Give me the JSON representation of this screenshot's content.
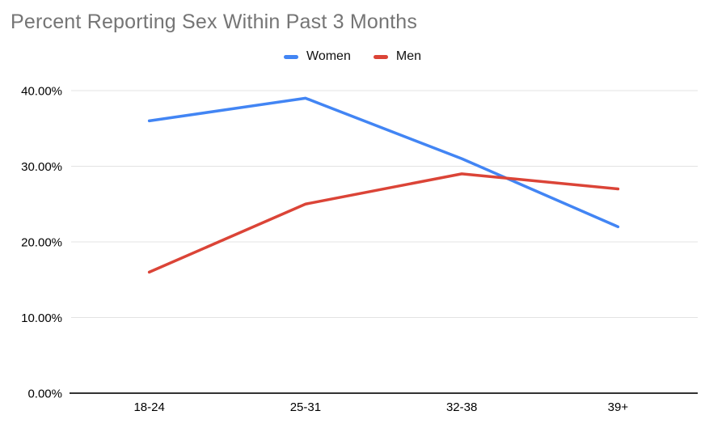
{
  "chart_data": {
    "type": "line",
    "title": "Percent Reporting Sex Within Past 3 Months",
    "categories": [
      "18-24",
      "25-31",
      "32-38",
      "39+"
    ],
    "series": [
      {
        "name": "Women",
        "color": "#4285F4",
        "values": [
          36,
          39,
          31,
          22
        ]
      },
      {
        "name": "Men",
        "color": "#DB4437",
        "values": [
          16,
          25,
          29,
          27
        ]
      }
    ],
    "yticks": [
      {
        "value": 0,
        "label": "0.00%"
      },
      {
        "value": 10,
        "label": "10.00%"
      },
      {
        "value": 20,
        "label": "20.00%"
      },
      {
        "value": 30,
        "label": "30.00%"
      },
      {
        "value": 40,
        "label": "40.00%"
      }
    ],
    "ylim": [
      0,
      40
    ],
    "xlabel": "",
    "ylabel": "",
    "grid": true,
    "legend_position": "top"
  },
  "styles": {
    "title_color": "#757575",
    "grid_color": "#E3E3E3",
    "axis_color": "#333333",
    "tick_label_color": "#000000",
    "background": "#FFFFFF"
  }
}
